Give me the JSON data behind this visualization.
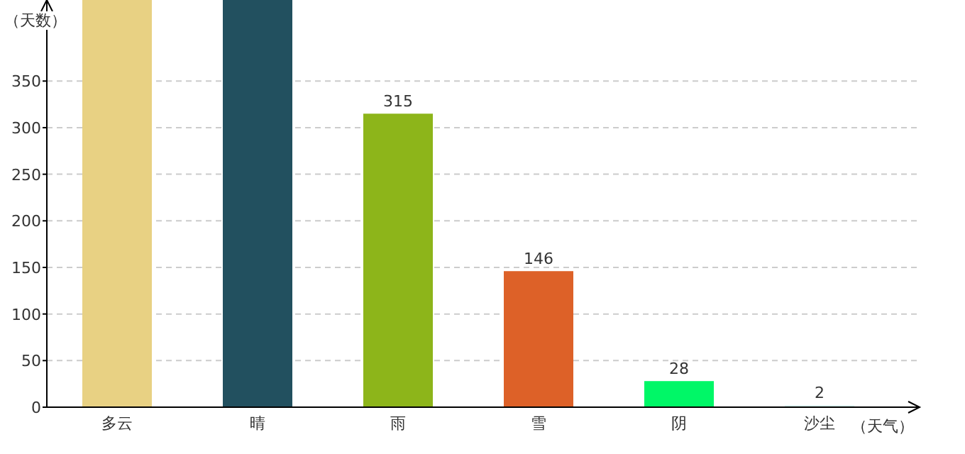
{
  "chart_data": {
    "type": "bar",
    "xlabel": "（天气）",
    "ylabel": "（天数）",
    "categories": [
      "多云",
      "晴",
      "雨",
      "雪",
      "阴",
      "沙尘"
    ],
    "values": [
      437,
      437,
      315,
      146,
      28,
      2
    ],
    "value_labels": [
      null,
      null,
      "315",
      "146",
      "28",
      "2"
    ],
    "colors": [
      "#e8d183",
      "#22505f",
      "#8db51a",
      "#dd6128",
      "#00f767",
      "#d6f3ee"
    ],
    "ylim": [
      0,
      437
    ],
    "yticks": [
      0,
      50,
      100,
      150,
      200,
      250,
      300,
      350
    ],
    "grid": "y"
  }
}
